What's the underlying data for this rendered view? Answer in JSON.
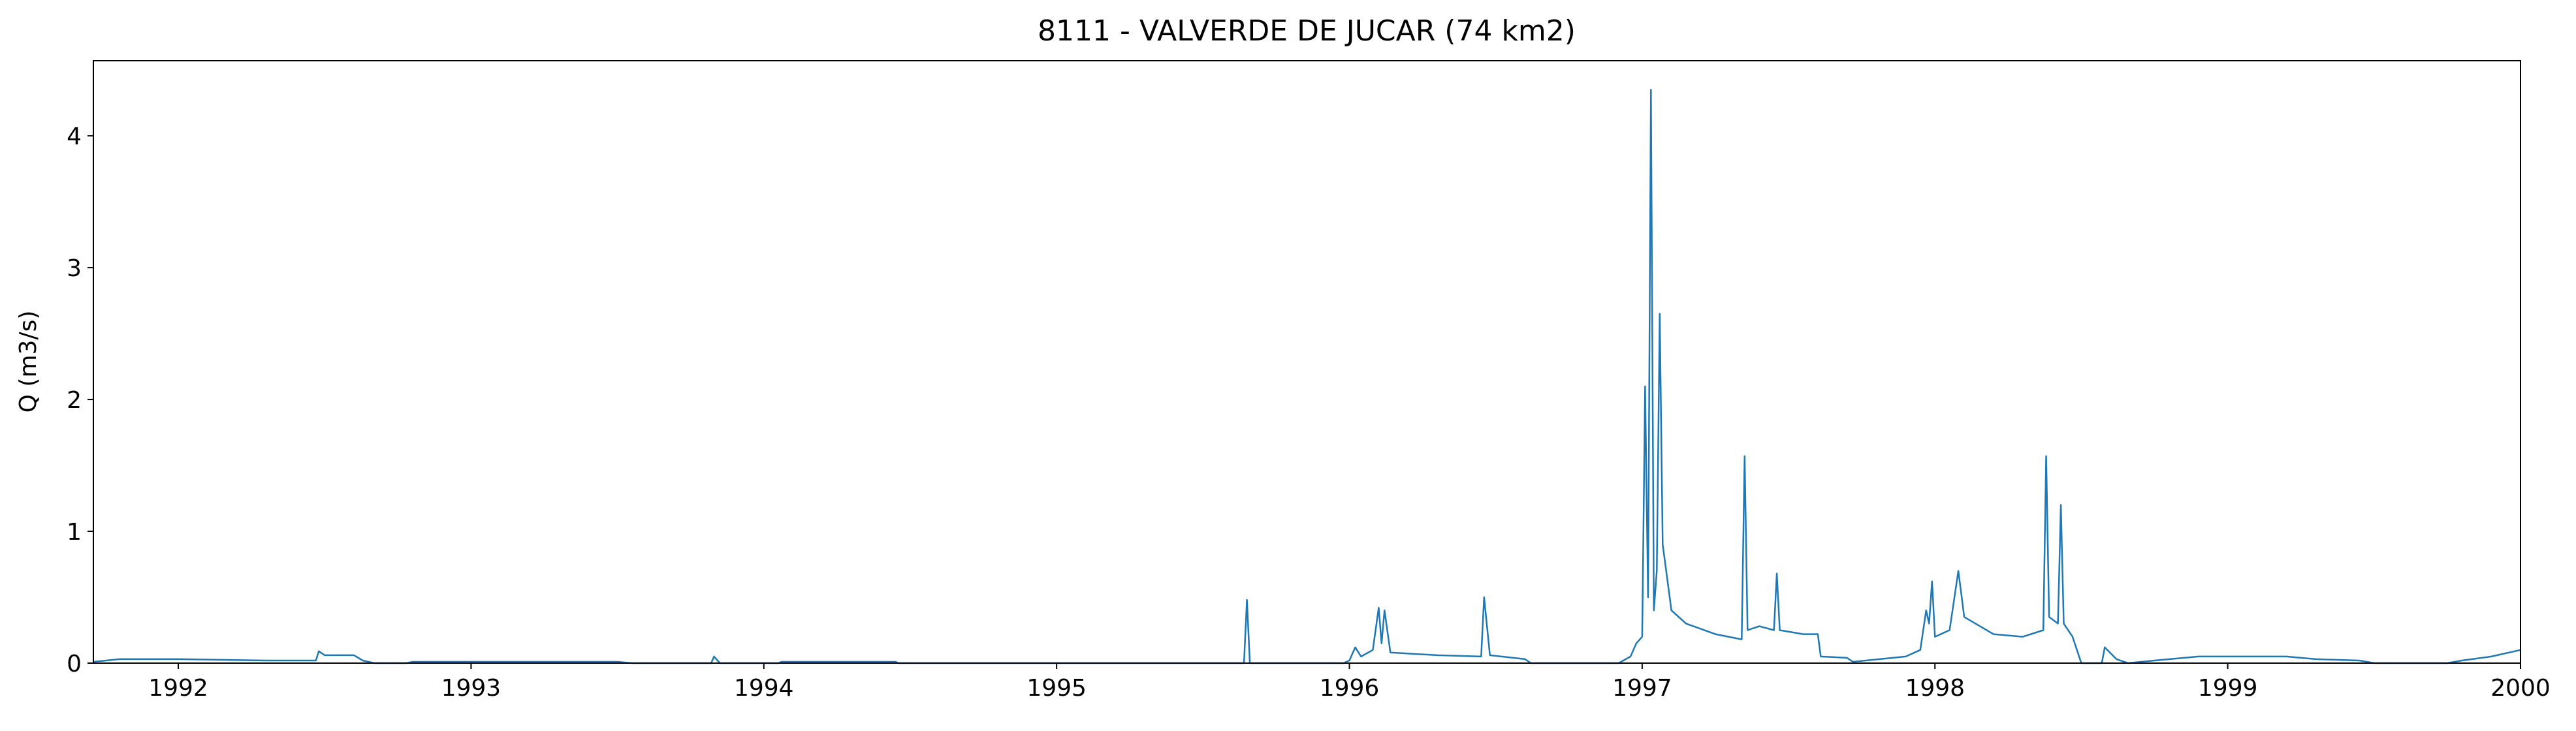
{
  "chart_data": {
    "type": "line",
    "title": "8111 - VALVERDE DE JUCAR (74 km2)",
    "y_label": "Q (m3/s)",
    "color": "#1f77b4",
    "xlim": [
      1991.71,
      2000
    ],
    "xticks": [
      1992,
      1993,
      1994,
      1995,
      1996,
      1997,
      1998,
      1999,
      2000
    ],
    "ylim": [
      0,
      4.57
    ],
    "yticks": [
      0,
      1,
      2,
      3,
      4
    ],
    "grid": false,
    "x": [
      1991.71,
      1991.8,
      1992.0,
      1992.3,
      1992.47,
      1992.48,
      1992.5,
      1992.6,
      1992.63,
      1992.67,
      1992.78,
      1992.8,
      1993.5,
      1993.55,
      1993.82,
      1993.83,
      1993.85,
      1994.05,
      1994.06,
      1994.45,
      1994.46,
      1995.64,
      1995.65,
      1995.66,
      1995.98,
      1996.0,
      1996.02,
      1996.04,
      1996.08,
      1996.1,
      1996.11,
      1996.12,
      1996.14,
      1996.3,
      1996.45,
      1996.46,
      1996.48,
      1996.6,
      1996.62,
      1996.92,
      1996.96,
      1996.98,
      1997.0,
      1997.01,
      1997.02,
      1997.03,
      1997.04,
      1997.05,
      1997.06,
      1997.07,
      1997.1,
      1997.15,
      1997.25,
      1997.34,
      1997.35,
      1997.36,
      1997.4,
      1997.45,
      1997.46,
      1997.47,
      1997.55,
      1997.6,
      1997.61,
      1997.7,
      1997.72,
      1997.9,
      1997.95,
      1997.97,
      1997.98,
      1997.99,
      1998.0,
      1998.05,
      1998.08,
      1998.1,
      1998.2,
      1998.3,
      1998.37,
      1998.38,
      1998.39,
      1998.42,
      1998.43,
      1998.44,
      1998.47,
      1998.5,
      1998.57,
      1998.58,
      1998.62,
      1998.66,
      1998.75,
      1998.9,
      1999.2,
      1999.3,
      1999.45,
      1999.5,
      1999.75,
      1999.8,
      1999.9,
      2000.0
    ],
    "values": [
      0.01,
      0.03,
      0.03,
      0.02,
      0.02,
      0.09,
      0.06,
      0.06,
      0.02,
      0.0,
      0.0,
      0.01,
      0.01,
      0.0,
      0.0,
      0.05,
      0.0,
      0.0,
      0.01,
      0.01,
      0.0,
      0.0,
      0.48,
      0.0,
      0.0,
      0.02,
      0.12,
      0.05,
      0.1,
      0.42,
      0.15,
      0.4,
      0.08,
      0.06,
      0.05,
      0.5,
      0.06,
      0.03,
      0.0,
      0.0,
      0.05,
      0.15,
      0.2,
      2.1,
      0.5,
      4.35,
      0.4,
      0.7,
      2.65,
      0.9,
      0.4,
      0.3,
      0.22,
      0.18,
      1.57,
      0.25,
      0.28,
      0.25,
      0.68,
      0.25,
      0.22,
      0.22,
      0.05,
      0.04,
      0.01,
      0.05,
      0.1,
      0.4,
      0.3,
      0.62,
      0.2,
      0.25,
      0.7,
      0.35,
      0.22,
      0.2,
      0.25,
      1.57,
      0.35,
      0.3,
      1.2,
      0.3,
      0.2,
      0.0,
      0.0,
      0.12,
      0.03,
      0.0,
      0.02,
      0.05,
      0.05,
      0.03,
      0.02,
      0.0,
      0.0,
      0.02,
      0.05,
      0.1
    ]
  }
}
